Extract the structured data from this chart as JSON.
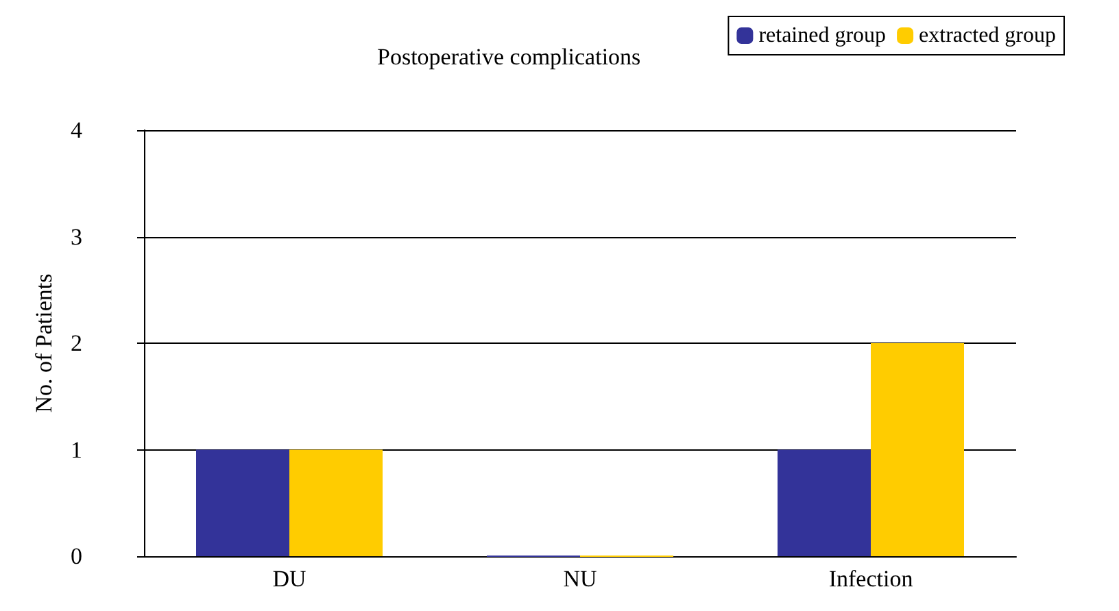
{
  "chart_data": {
    "type": "bar",
    "title": "Postoperative complications",
    "ylabel": "No. of Patients",
    "categories": [
      "DU",
      "NU",
      "Infection"
    ],
    "series": [
      {
        "name": "retained group",
        "color": "#333399",
        "values": [
          1,
          0,
          1
        ]
      },
      {
        "name": "extracted group",
        "color": "#ffcc00",
        "values": [
          1,
          0,
          2
        ]
      }
    ],
    "ylim": [
      0,
      4
    ],
    "yticks": [
      0,
      1,
      2,
      3,
      4
    ],
    "grid": "y",
    "legend": "top right"
  }
}
